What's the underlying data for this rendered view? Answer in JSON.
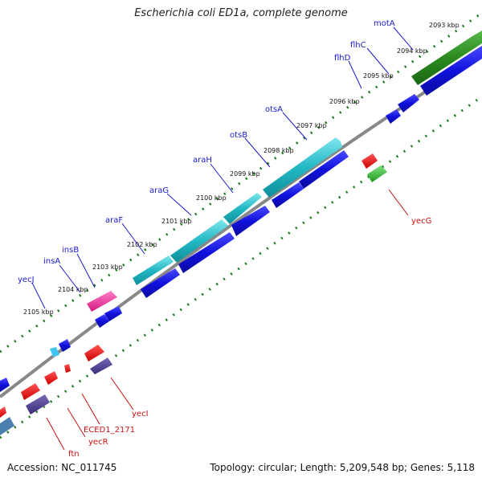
{
  "header": {
    "title": "Escherichia coli ED1a, complete genome"
  },
  "footer": {
    "accession": "Accession: NC_011745",
    "summary": "Topology: circular; Length: 5,209,548 bp; Genes: 5,118"
  },
  "kbp_ticks": [
    "2093 kbp",
    "2094 kbp",
    "2095 kbp",
    "2096 kbp",
    "2097 kbp",
    "2098 kbp",
    "2099 kbp",
    "2100 kbp",
    "2101 kbp",
    "2102 kbp",
    "2103 kbp",
    "2104 kbp",
    "2105 kbp"
  ],
  "gene_labels_top": [
    "motA",
    "flhC",
    "flhD",
    "otsA",
    "otsB",
    "araH",
    "araG",
    "araF",
    "insB",
    "insA",
    "yecJ"
  ],
  "gene_labels_bottom": [
    "yecG",
    "yecI",
    "ECED1_2171",
    "yecR",
    "ftn"
  ],
  "colors": {
    "forward_cog": "#22b8c4",
    "forward_cds": "#1111dd",
    "motility": "#2a8a1f",
    "insertion": "#e0258f",
    "reverse_cds": "#ee1111",
    "reverse_misc": "#4b3a8a",
    "reverse_green": "#33bb33",
    "tick_dots": "#1a7a1a",
    "backbone": "#888888"
  }
}
